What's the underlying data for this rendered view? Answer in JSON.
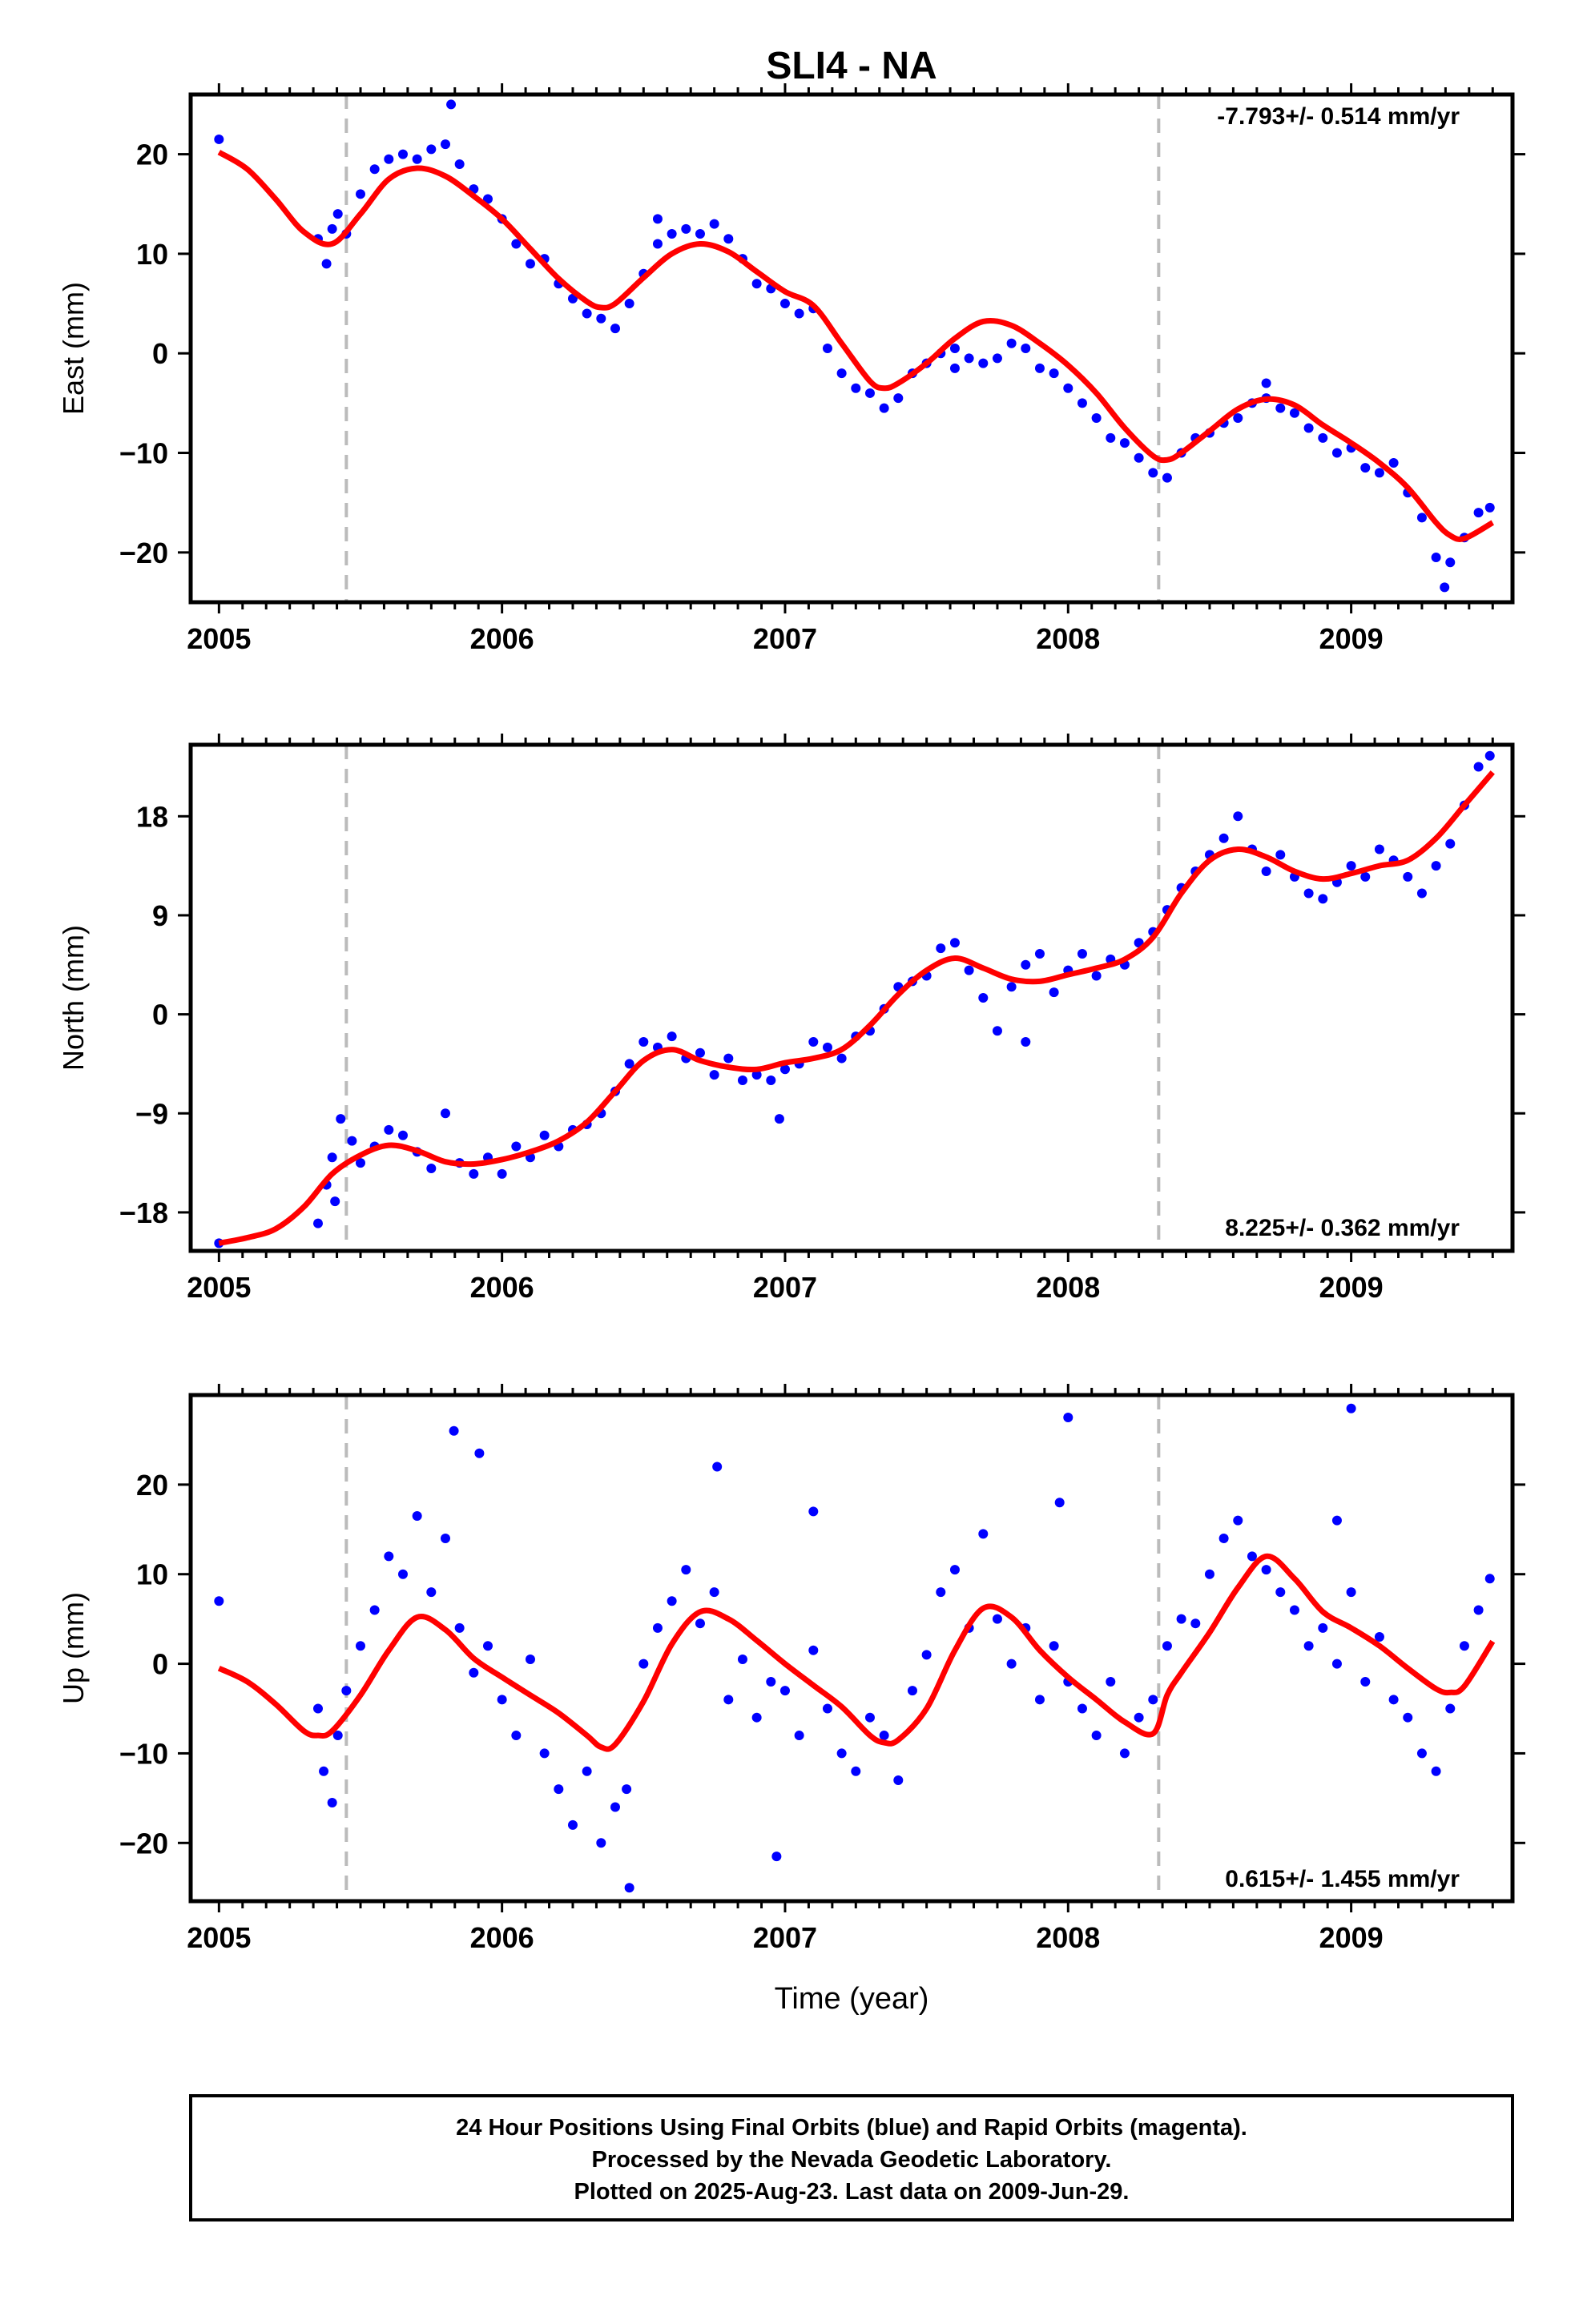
{
  "title": "SLI4 - NA",
  "xlabel": "Time (year)",
  "colors": {
    "final_orbits": "#0000ff",
    "model": "#ff0000",
    "offset_line": "#bbbbbb"
  },
  "footer": [
    "24 Hour Positions Using Final Orbits (blue) and Rapid Orbits (magenta).",
    "Processed by the Nevada Geodetic Laboratory.",
    "Plotted on 2025-Aug-23. Last data on 2009-Jun-29."
  ],
  "chart_data": [
    {
      "type": "scatter",
      "ylabel": "East (mm)",
      "rate_label": "-7.793+/- 0.514 mm/yr",
      "xlim": [
        2004.9,
        2009.57
      ],
      "ylim": [
        -25,
        26
      ],
      "xticks": [
        2005,
        2006,
        2007,
        2008,
        2009
      ],
      "yticks": [
        20,
        10,
        0,
        -10,
        -20
      ],
      "tick_labels": [
        "20",
        "10",
        "0",
        "−10",
        "−20"
      ],
      "offset_epochs": [
        2005.45,
        2008.32
      ],
      "series": [
        {
          "role": "model",
          "x": [
            2005.0,
            2005.1,
            2005.2,
            2005.3,
            2005.4,
            2005.5,
            2005.6,
            2005.7,
            2005.8,
            2005.9,
            2006.0,
            2006.1,
            2006.2,
            2006.3,
            2006.35,
            2006.4,
            2006.5,
            2006.6,
            2006.7,
            2006.8,
            2006.9,
            2007.0,
            2007.1,
            2007.2,
            2007.3,
            2007.35,
            2007.4,
            2007.5,
            2007.6,
            2007.7,
            2007.8,
            2007.9,
            2008.0,
            2008.1,
            2008.2,
            2008.3,
            2008.35,
            2008.4,
            2008.5,
            2008.6,
            2008.7,
            2008.8,
            2008.9,
            2009.0,
            2009.1,
            2009.2,
            2009.3,
            2009.35,
            2009.4,
            2009.5
          ],
          "y": [
            20.2,
            18.5,
            15.5,
            12.2,
            11.0,
            14.0,
            17.5,
            18.6,
            17.8,
            15.8,
            13.5,
            10.5,
            7.5,
            5.2,
            4.6,
            5.0,
            7.6,
            10.0,
            11.0,
            10.2,
            8.2,
            6.2,
            4.8,
            1.0,
            -2.8,
            -3.5,
            -3.0,
            -1.0,
            1.5,
            3.2,
            2.8,
            1.0,
            -1.2,
            -4.0,
            -7.5,
            -10.3,
            -10.7,
            -10.0,
            -7.8,
            -5.6,
            -4.6,
            -5.2,
            -7.2,
            -9.0,
            -11.0,
            -13.5,
            -17.0,
            -18.3,
            -18.6,
            -17.0
          ]
        },
        {
          "role": "final_orbits",
          "note": "daily positions (sampled)",
          "x": [
            2005.0,
            2005.35,
            2005.38,
            2005.4,
            2005.42,
            2005.45,
            2005.5,
            2005.55,
            2005.6,
            2005.65,
            2005.7,
            2005.75,
            2005.8,
            2005.85,
            2005.9,
            2005.95,
            2006.0,
            2006.05,
            2006.1,
            2006.15,
            2006.2,
            2006.25,
            2006.3,
            2006.35,
            2006.4,
            2006.45,
            2006.5,
            2006.55,
            2006.6,
            2006.65,
            2006.7,
            2006.75,
            2006.8,
            2006.85,
            2006.9,
            2006.95,
            2007.0,
            2007.05,
            2007.1,
            2007.15,
            2007.2,
            2007.25,
            2007.3,
            2007.35,
            2007.4,
            2007.45,
            2007.5,
            2007.55,
            2007.6,
            2007.65,
            2007.7,
            2007.75,
            2007.8,
            2007.85,
            2007.9,
            2007.95,
            2008.0,
            2008.05,
            2008.1,
            2008.15,
            2008.2,
            2008.25,
            2008.3,
            2008.35,
            2008.4,
            2008.45,
            2008.5,
            2008.55,
            2008.6,
            2008.65,
            2008.7,
            2008.75,
            2008.8,
            2008.85,
            2008.9,
            2008.95,
            2009.0,
            2009.05,
            2009.1,
            2009.15,
            2009.2,
            2009.25,
            2009.3,
            2009.35,
            2009.4,
            2009.45,
            2009.49,
            2005.82,
            2006.55,
            2007.6,
            2008.7,
            2009.33
          ],
          "y": [
            21.5,
            11.5,
            9.0,
            12.5,
            14.0,
            12.0,
            16.0,
            18.5,
            19.5,
            20.0,
            19.5,
            20.5,
            21.0,
            19.0,
            16.5,
            15.5,
            13.5,
            11.0,
            9.0,
            9.5,
            7.0,
            5.5,
            4.0,
            3.5,
            2.5,
            5.0,
            8.0,
            11.0,
            12.0,
            12.5,
            12.0,
            13.0,
            11.5,
            9.5,
            7.0,
            6.5,
            5.0,
            4.0,
            4.5,
            0.5,
            -2.0,
            -3.5,
            -4.0,
            -5.5,
            -4.5,
            -2.0,
            -1.0,
            0.0,
            0.5,
            -0.5,
            -1.0,
            -0.5,
            1.0,
            0.5,
            -1.5,
            -2.0,
            -3.5,
            -5.0,
            -6.5,
            -8.5,
            -9.0,
            -10.5,
            -12.0,
            -12.5,
            -10.0,
            -8.5,
            -8.0,
            -7.0,
            -6.5,
            -5.0,
            -4.5,
            -5.5,
            -6.0,
            -7.5,
            -8.5,
            -10.0,
            -9.5,
            -11.5,
            -12.0,
            -11.0,
            -14.0,
            -16.5,
            -20.5,
            -21.0,
            -18.5,
            -16.0,
            -15.5,
            25.0,
            13.5,
            -1.5,
            -3.0,
            -23.5
          ]
        }
      ]
    },
    {
      "type": "scatter",
      "ylabel": "North (mm)",
      "rate_label": "8.225+/- 0.362 mm/yr",
      "xlim": [
        2004.9,
        2009.57
      ],
      "ylim": [
        -21.5,
        24.5
      ],
      "xticks": [
        2005,
        2006,
        2007,
        2008,
        2009
      ],
      "yticks": [
        18,
        9,
        0,
        -9,
        -18
      ],
      "tick_labels": [
        "18",
        "9",
        "0",
        "−9",
        "−18"
      ],
      "offset_epochs": [
        2005.45,
        2008.32
      ],
      "series": [
        {
          "role": "model",
          "x": [
            2005.0,
            2005.1,
            2005.2,
            2005.3,
            2005.4,
            2005.5,
            2005.6,
            2005.7,
            2005.8,
            2005.9,
            2006.0,
            2006.1,
            2006.2,
            2006.3,
            2006.4,
            2006.5,
            2006.6,
            2006.7,
            2006.8,
            2006.9,
            2007.0,
            2007.1,
            2007.2,
            2007.3,
            2007.4,
            2007.5,
            2007.6,
            2007.7,
            2007.8,
            2007.9,
            2008.0,
            2008.1,
            2008.2,
            2008.3,
            2008.4,
            2008.5,
            2008.6,
            2008.7,
            2008.8,
            2008.9,
            2009.0,
            2009.1,
            2009.2,
            2009.3,
            2009.4,
            2009.5
          ],
          "y": [
            -20.8,
            -20.3,
            -19.5,
            -17.5,
            -14.5,
            -12.8,
            -11.9,
            -12.4,
            -13.4,
            -13.6,
            -13.2,
            -12.5,
            -11.5,
            -9.8,
            -7.0,
            -4.2,
            -3.2,
            -4.2,
            -4.8,
            -5.0,
            -4.4,
            -4.0,
            -3.2,
            -1.0,
            1.8,
            4.0,
            5.1,
            4.2,
            3.2,
            3.0,
            3.6,
            4.2,
            5.0,
            7.0,
            11.0,
            14.0,
            15.0,
            14.3,
            13.0,
            12.3,
            12.8,
            13.5,
            14.0,
            16.0,
            19.0,
            22.0
          ]
        },
        {
          "role": "final_orbits",
          "note": "daily positions (sampled)",
          "x": [
            2005.0,
            2005.35,
            2005.38,
            2005.4,
            2005.43,
            2005.47,
            2005.5,
            2005.55,
            2005.6,
            2005.65,
            2005.7,
            2005.75,
            2005.8,
            2005.85,
            2005.9,
            2005.95,
            2006.0,
            2006.05,
            2006.1,
            2006.15,
            2006.2,
            2006.25,
            2006.3,
            2006.35,
            2006.4,
            2006.45,
            2006.5,
            2006.55,
            2006.6,
            2006.65,
            2006.7,
            2006.75,
            2006.8,
            2006.85,
            2006.9,
            2006.95,
            2007.0,
            2007.05,
            2007.1,
            2007.15,
            2007.2,
            2007.25,
            2007.3,
            2007.35,
            2007.4,
            2007.45,
            2007.5,
            2007.55,
            2007.6,
            2007.65,
            2007.7,
            2007.75,
            2007.8,
            2007.85,
            2007.9,
            2007.95,
            2008.0,
            2008.05,
            2008.1,
            2008.15,
            2008.2,
            2008.25,
            2008.3,
            2008.35,
            2008.4,
            2008.45,
            2008.5,
            2008.55,
            2008.6,
            2008.65,
            2008.7,
            2008.75,
            2008.8,
            2008.85,
            2008.9,
            2008.95,
            2009.0,
            2009.05,
            2009.1,
            2009.15,
            2009.2,
            2009.25,
            2009.3,
            2009.35,
            2009.4,
            2009.45,
            2009.49,
            2005.41,
            2006.98,
            2007.85
          ],
          "y": [
            -20.8,
            -19.0,
            -15.5,
            -13.0,
            -9.5,
            -11.5,
            -13.5,
            -12.0,
            -10.5,
            -11.0,
            -12.5,
            -14.0,
            -9.0,
            -13.5,
            -14.5,
            -13.0,
            -14.5,
            -12.0,
            -13.0,
            -11.0,
            -12.0,
            -10.5,
            -10.0,
            -9.0,
            -7.0,
            -4.5,
            -2.5,
            -3.0,
            -2.0,
            -4.0,
            -3.5,
            -5.5,
            -4.0,
            -6.0,
            -5.5,
            -6.0,
            -5.0,
            -4.5,
            -2.5,
            -3.0,
            -4.0,
            -2.0,
            -1.5,
            0.5,
            2.5,
            3.0,
            3.5,
            6.0,
            6.5,
            4.0,
            1.5,
            -1.5,
            2.5,
            4.5,
            5.5,
            2.0,
            4.0,
            5.5,
            3.5,
            5.0,
            4.5,
            6.5,
            7.5,
            9.5,
            11.5,
            13.0,
            14.5,
            16.0,
            18.0,
            15.0,
            13.0,
            14.5,
            12.5,
            11.0,
            10.5,
            12.0,
            13.5,
            12.5,
            15.0,
            14.0,
            12.5,
            11.0,
            13.5,
            15.5,
            19.0,
            22.5,
            23.5,
            -17.0,
            -9.5,
            -2.5
          ]
        }
      ]
    },
    {
      "type": "scatter",
      "ylabel": "Up (mm)",
      "rate_label": "0.615+/- 1.455 mm/yr",
      "xlim": [
        2004.9,
        2009.57
      ],
      "ylim": [
        -26.5,
        30
      ],
      "xticks": [
        2005,
        2006,
        2007,
        2008,
        2009
      ],
      "yticks": [
        20,
        10,
        0,
        -10,
        -20
      ],
      "tick_labels": [
        "20",
        "10",
        "0",
        "−10",
        "−20"
      ],
      "offset_epochs": [
        2005.45,
        2008.32
      ],
      "series": [
        {
          "role": "model",
          "x": [
            2005.0,
            2005.1,
            2005.2,
            2005.3,
            2005.35,
            2005.4,
            2005.5,
            2005.6,
            2005.7,
            2005.8,
            2005.9,
            2006.0,
            2006.1,
            2006.2,
            2006.3,
            2006.35,
            2006.4,
            2006.5,
            2006.6,
            2006.7,
            2006.8,
            2006.9,
            2007.0,
            2007.1,
            2007.2,
            2007.3,
            2007.35,
            2007.4,
            2007.5,
            2007.6,
            2007.7,
            2007.8,
            2007.9,
            2008.0,
            2008.1,
            2008.2,
            2008.3,
            2008.35,
            2008.4,
            2008.5,
            2008.6,
            2008.7,
            2008.8,
            2008.9,
            2009.0,
            2009.1,
            2009.2,
            2009.3,
            2009.35,
            2009.4,
            2009.5
          ],
          "y": [
            -0.5,
            -2.0,
            -4.5,
            -7.5,
            -8.0,
            -7.5,
            -3.5,
            1.5,
            5.2,
            3.8,
            0.6,
            -1.5,
            -3.5,
            -5.5,
            -8.0,
            -9.3,
            -9.0,
            -4.2,
            2.2,
            5.8,
            5.0,
            2.6,
            0.0,
            -2.4,
            -4.8,
            -8.0,
            -8.8,
            -8.5,
            -5.0,
            1.5,
            6.2,
            5.2,
            1.5,
            -1.5,
            -4.0,
            -6.5,
            -7.8,
            -3.5,
            -1.0,
            3.5,
            8.5,
            12.0,
            9.5,
            5.8,
            4.0,
            2.0,
            -0.5,
            -2.8,
            -3.2,
            -2.5,
            2.5
          ]
        },
        {
          "role": "final_orbits",
          "note": "daily positions (sampled)",
          "x": [
            2005.0,
            2005.35,
            2005.37,
            2005.4,
            2005.42,
            2005.45,
            2005.5,
            2005.55,
            2005.6,
            2005.65,
            2005.7,
            2005.75,
            2005.8,
            2005.85,
            2005.9,
            2005.95,
            2006.0,
            2006.05,
            2006.1,
            2006.15,
            2006.2,
            2006.25,
            2006.3,
            2006.35,
            2006.4,
            2006.45,
            2006.5,
            2006.55,
            2006.6,
            2006.65,
            2006.7,
            2006.75,
            2006.8,
            2006.85,
            2006.9,
            2006.95,
            2007.0,
            2007.05,
            2007.1,
            2007.15,
            2007.2,
            2007.25,
            2007.3,
            2007.35,
            2007.4,
            2007.45,
            2007.5,
            2007.55,
            2007.6,
            2007.65,
            2007.7,
            2007.75,
            2007.8,
            2007.85,
            2007.9,
            2007.95,
            2008.0,
            2008.05,
            2008.1,
            2008.15,
            2008.2,
            2008.25,
            2008.3,
            2008.35,
            2008.4,
            2008.45,
            2008.5,
            2008.55,
            2008.6,
            2008.65,
            2008.7,
            2008.75,
            2008.8,
            2008.85,
            2008.9,
            2008.95,
            2009.0,
            2009.05,
            2009.1,
            2009.15,
            2009.2,
            2009.25,
            2009.3,
            2009.35,
            2009.4,
            2009.45,
            2009.49,
            2005.83,
            2005.92,
            2006.44,
            2006.76,
            2006.97,
            2007.1,
            2007.97,
            2008.0,
            2008.95,
            2009.0
          ],
          "y": [
            7.0,
            -5.0,
            -12.0,
            -15.5,
            -8.0,
            -3.0,
            2.0,
            6.0,
            12.0,
            10.0,
            16.5,
            8.0,
            14.0,
            4.0,
            -1.0,
            2.0,
            -4.0,
            -8.0,
            0.5,
            -10.0,
            -14.0,
            -18.0,
            -12.0,
            -20.0,
            -16.0,
            -25.0,
            0.0,
            4.0,
            7.0,
            10.5,
            4.5,
            8.0,
            -4.0,
            0.5,
            -6.0,
            -2.0,
            -3.0,
            -8.0,
            1.5,
            -5.0,
            -10.0,
            -12.0,
            -6.0,
            -8.0,
            -13.0,
            -3.0,
            1.0,
            8.0,
            10.5,
            4.0,
            14.5,
            5.0,
            0.0,
            4.0,
            -4.0,
            2.0,
            -2.0,
            -5.0,
            -8.0,
            -2.0,
            -10.0,
            -6.0,
            -4.0,
            2.0,
            5.0,
            4.5,
            10.0,
            14.0,
            16.0,
            12.0,
            10.5,
            8.0,
            6.0,
            2.0,
            4.0,
            0.0,
            8.0,
            -2.0,
            3.0,
            -4.0,
            -6.0,
            -10.0,
            -12.0,
            -5.0,
            2.0,
            6.0,
            9.5,
            26.0,
            23.5,
            -14.0,
            22.0,
            -21.5,
            17.0,
            18.0,
            27.5,
            16.0,
            28.5
          ]
        }
      ]
    }
  ]
}
